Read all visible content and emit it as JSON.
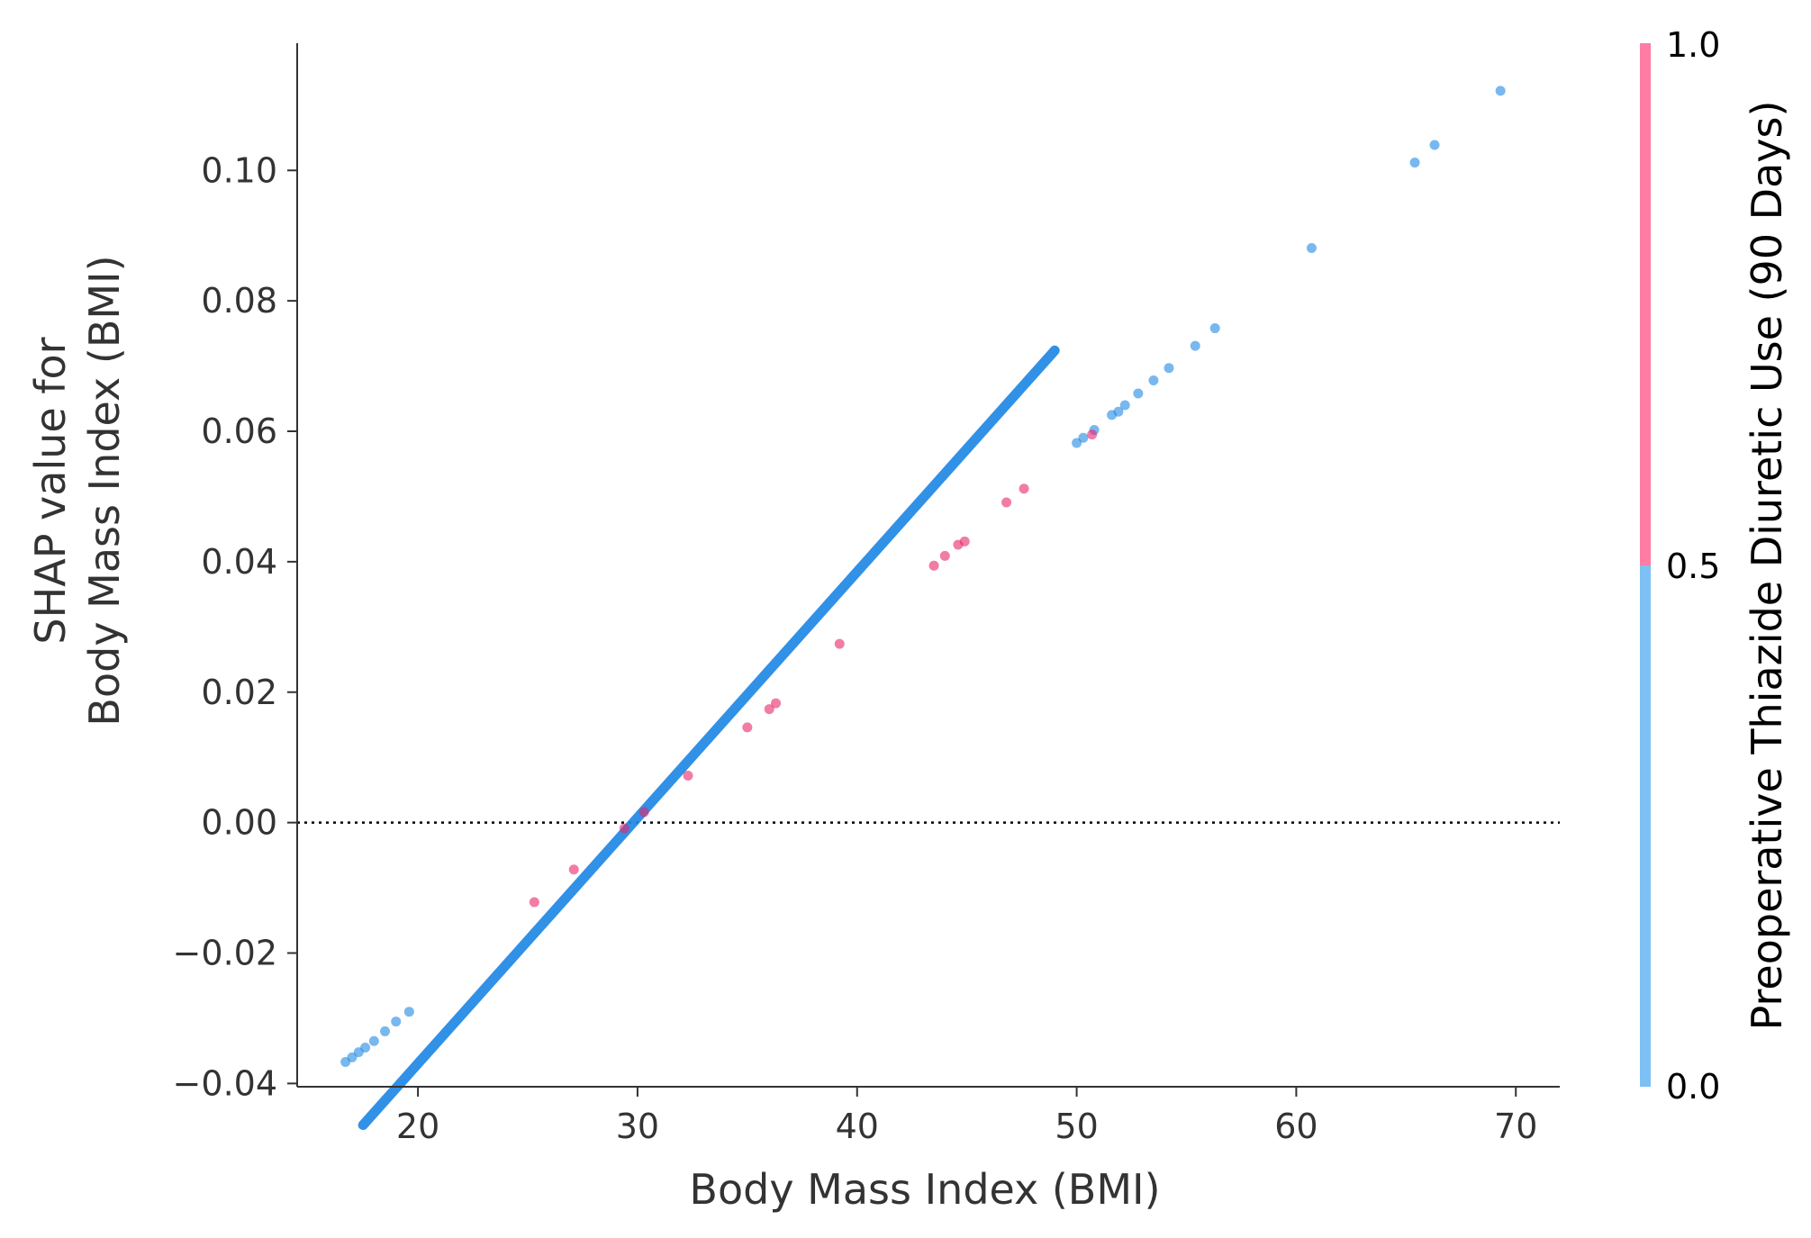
{
  "chart_data": {
    "type": "scatter",
    "xlabel": "Body Mass Index (BMI)",
    "ylabel_line1": "SHAP value for",
    "ylabel_line2": "Body Mass Index (BMI)",
    "xlim": [
      14.5,
      72
    ],
    "ylim": [
      -0.0405,
      0.1195
    ],
    "x_ticks": [
      20,
      30,
      40,
      50,
      60,
      70
    ],
    "y_ticks": [
      -0.04,
      -0.02,
      0.0,
      0.02,
      0.04,
      0.06,
      0.08,
      0.1
    ],
    "x_tick_labels": [
      "20",
      "30",
      "40",
      "50",
      "60",
      "70"
    ],
    "y_tick_labels": [
      "−0.04",
      "−0.02",
      "0.00",
      "0.02",
      "0.04",
      "0.06",
      "0.08",
      "0.10"
    ],
    "zero_line": 0.0,
    "colorbar": {
      "title": "Preoperative Thiazide Diuretic Use (90 Days)",
      "range": [
        0.0,
        1.0
      ],
      "tick_labels": [
        "0.0",
        "0.5",
        "1.0"
      ],
      "low_color": "#7cc0f4",
      "high_color": "#ff7ca4"
    },
    "dense_segment": {
      "x_start": 17.5,
      "x_end": 49.0,
      "color": "#1e88e5"
    },
    "series": [
      {
        "feature_value": 0,
        "color": "#1e88e5",
        "points": [
          [
            16.7,
            -0.0367
          ],
          [
            17.0,
            -0.036
          ],
          [
            17.3,
            -0.0352
          ],
          [
            17.6,
            -0.0345
          ],
          [
            18.0,
            -0.0335
          ],
          [
            18.5,
            -0.032
          ],
          [
            19.0,
            -0.0305
          ],
          [
            19.6,
            -0.029
          ],
          [
            50.0,
            0.0582
          ],
          [
            50.3,
            0.059
          ],
          [
            50.8,
            0.0602
          ],
          [
            51.6,
            0.0625
          ],
          [
            51.9,
            0.063
          ],
          [
            52.2,
            0.064
          ],
          [
            52.8,
            0.0658
          ],
          [
            53.5,
            0.0678
          ],
          [
            54.2,
            0.0697
          ],
          [
            55.4,
            0.0731
          ],
          [
            56.3,
            0.0758
          ],
          [
            60.7,
            0.0881
          ],
          [
            65.4,
            0.1012
          ],
          [
            66.3,
            0.1039
          ],
          [
            69.3,
            0.1122
          ]
        ]
      },
      {
        "feature_value": 1,
        "color": "#e8246a",
        "points": [
          [
            25.3,
            -0.0122
          ],
          [
            27.1,
            -0.0072
          ],
          [
            29.4,
            -0.0009
          ],
          [
            30.3,
            0.0016
          ],
          [
            32.3,
            0.0072
          ],
          [
            35.0,
            0.0146
          ],
          [
            36.0,
            0.0174
          ],
          [
            36.3,
            0.0183
          ],
          [
            39.2,
            0.0274
          ],
          [
            43.5,
            0.0394
          ],
          [
            44.0,
            0.0409
          ],
          [
            44.6,
            0.0426
          ],
          [
            44.9,
            0.0431
          ],
          [
            46.8,
            0.0491
          ],
          [
            47.6,
            0.0512
          ],
          [
            50.7,
            0.0595
          ]
        ]
      }
    ]
  }
}
